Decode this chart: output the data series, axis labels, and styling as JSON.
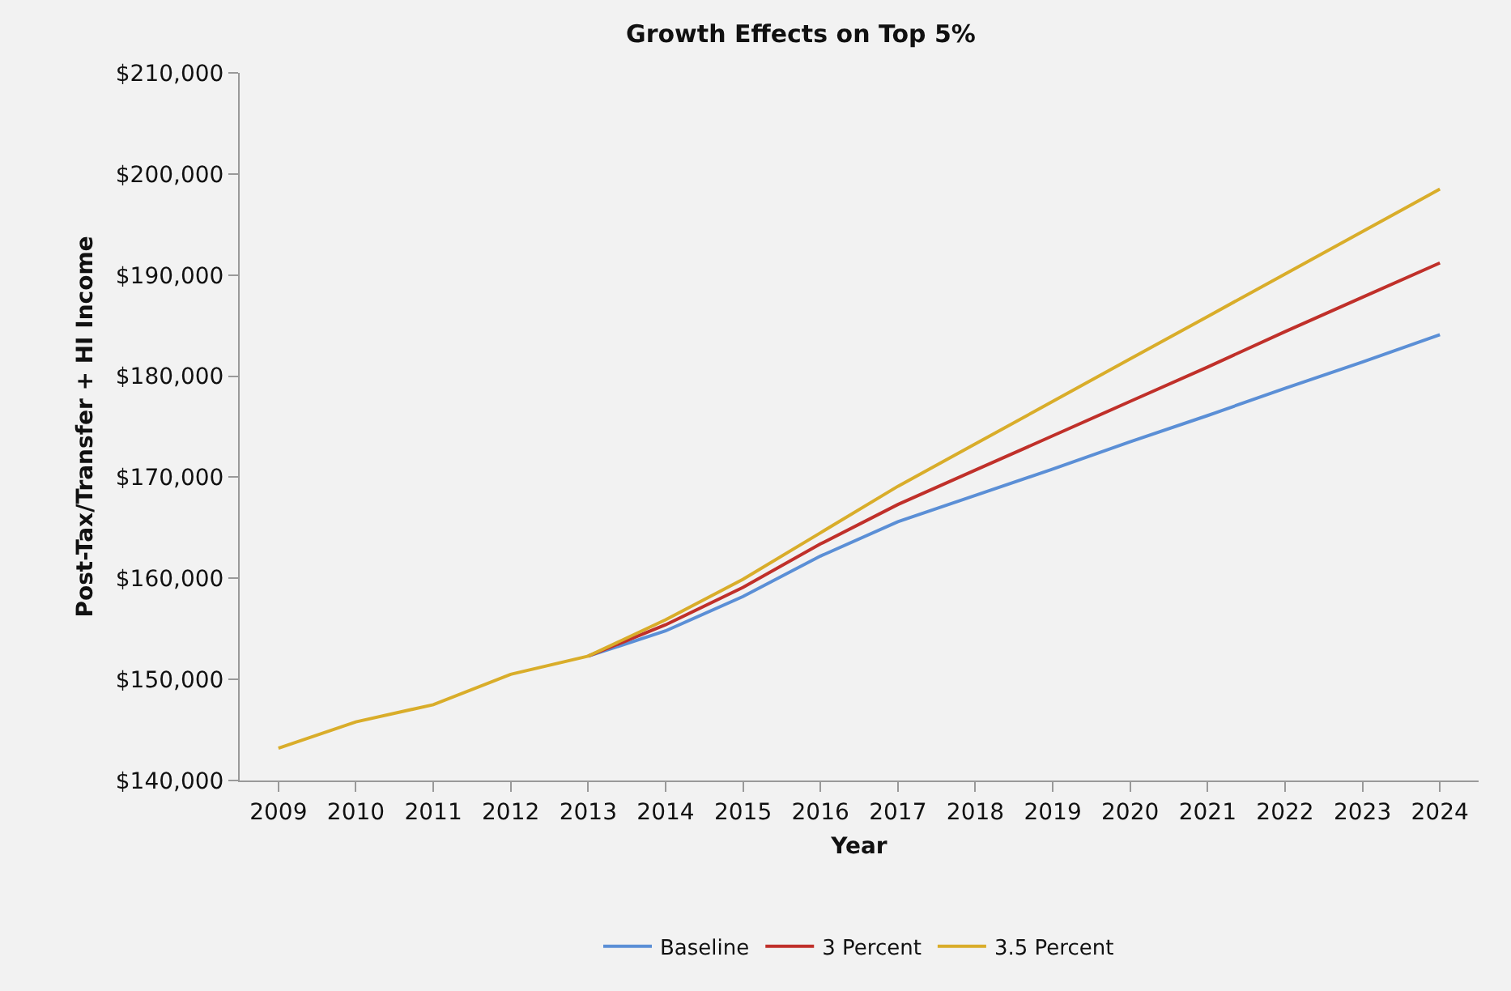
{
  "chart_data": {
    "type": "line",
    "title": "Growth Effects on Top 5%",
    "xlabel": "Year",
    "ylabel": "Post-Tax/Transfer + HI Income",
    "x": [
      2009,
      2010,
      2011,
      2012,
      2013,
      2014,
      2015,
      2016,
      2017,
      2018,
      2019,
      2020,
      2021,
      2022,
      2023,
      2024
    ],
    "xlim": [
      2008.5,
      2024.5
    ],
    "xticks": [
      2009,
      2010,
      2011,
      2012,
      2013,
      2014,
      2015,
      2016,
      2017,
      2018,
      2019,
      2020,
      2021,
      2022,
      2023,
      2024
    ],
    "ylim": [
      140000,
      210000
    ],
    "yticks": [
      {
        "value": 140000,
        "label": "$140,000"
      },
      {
        "value": 150000,
        "label": "$150,000"
      },
      {
        "value": 160000,
        "label": "$160,000"
      },
      {
        "value": 170000,
        "label": "$170,000"
      },
      {
        "value": 180000,
        "label": "$180,000"
      },
      {
        "value": 190000,
        "label": "$190,000"
      },
      {
        "value": 200000,
        "label": "$200,000"
      },
      {
        "value": 210000,
        "label": "$210,000"
      }
    ],
    "grid": false,
    "legend": "bottom",
    "marker": "none",
    "line_style": "solid",
    "series": [
      {
        "name": "Baseline",
        "color": "#5b8fd6",
        "values": [
          null,
          null,
          null,
          null,
          152300,
          154800,
          158200,
          162200,
          165600,
          168200,
          170800,
          173500,
          176100,
          178800,
          181400,
          184100
        ]
      },
      {
        "name": "3 Percent",
        "color": "#c0302a",
        "values": [
          null,
          null,
          null,
          null,
          152300,
          155400,
          159100,
          163400,
          167300,
          170700,
          174100,
          177500,
          180900,
          184400,
          187800,
          191200
        ]
      },
      {
        "name": "3.5 Percent",
        "color": "#d9ad2a",
        "values": [
          143200,
          145800,
          147500,
          150500,
          152300,
          155900,
          159900,
          164500,
          169100,
          173300,
          177500,
          181700,
          185900,
          190100,
          194300,
          198500
        ]
      }
    ]
  }
}
